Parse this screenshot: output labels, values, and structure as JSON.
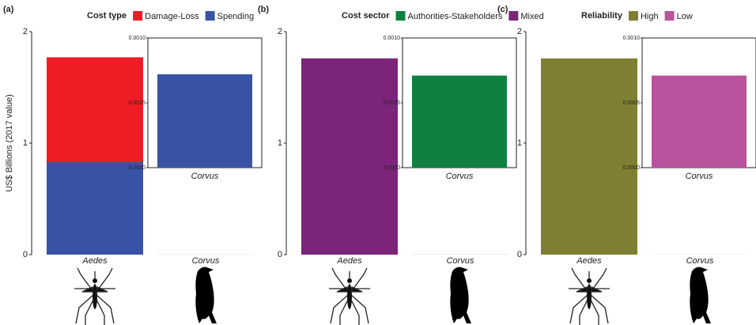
{
  "chart_data": [
    {
      "type": "bar",
      "stacked": true,
      "panel_label": "(a)",
      "legend_title": "Cost type",
      "ylabel": "US$ Billions (2017 value)",
      "categories": [
        "Aedes",
        "Corvus"
      ],
      "series": [
        {
          "name": "Damage-Loss",
          "color": "#ee1c25",
          "values": [
            0.94,
            null
          ]
        },
        {
          "name": "Spending",
          "color": "#3953a4",
          "values": [
            0.83,
            0.00072
          ]
        }
      ],
      "ylim": [
        0,
        2
      ],
      "yticks": [
        0,
        1,
        2
      ],
      "inset": {
        "ylim": [
          0,
          0.001
        ],
        "yticks": [
          {
            "value": 0,
            "label": "0.0000"
          },
          {
            "value": 0.0005,
            "label": "0.0005"
          },
          {
            "value": 0.001,
            "label": "0.0010"
          }
        ]
      }
    },
    {
      "type": "bar",
      "stacked": true,
      "panel_label": "(b)",
      "legend_title": "Cost sector",
      "categories": [
        "Aedes",
        "Corvus"
      ],
      "series": [
        {
          "name": "Authorities-Stakeholders",
          "color": "#0f8040",
          "values": [
            null,
            0.00071
          ]
        },
        {
          "name": "Mixed",
          "color": "#7b2479",
          "values": [
            1.76,
            null
          ]
        }
      ],
      "ylim": [
        0,
        2
      ],
      "yticks": [
        0,
        1,
        2
      ],
      "inset": {
        "ylim": [
          0,
          0.001
        ],
        "yticks": [
          {
            "value": 0,
            "label": "0.0000"
          },
          {
            "value": 0.0005,
            "label": "0.0005"
          },
          {
            "value": 0.001,
            "label": "0.0010"
          }
        ]
      }
    },
    {
      "type": "bar",
      "stacked": true,
      "panel_label": "(c)",
      "legend_title": "Reliability",
      "categories": [
        "Aedes",
        "Corvus"
      ],
      "series": [
        {
          "name": "High",
          "color": "#7f7f33",
          "values": [
            1.76,
            null
          ]
        },
        {
          "name": "Low",
          "color": "#b9529f",
          "values": [
            null,
            0.00071
          ]
        }
      ],
      "ylim": [
        0,
        2
      ],
      "yticks": [
        0,
        1,
        2
      ],
      "inset": {
        "ylim": [
          0,
          0.001
        ],
        "yticks": [
          {
            "value": 0,
            "label": "0.0000"
          },
          {
            "value": 0.0005,
            "label": "0.0005"
          },
          {
            "value": 0.001,
            "label": "0.0010"
          }
        ]
      }
    }
  ]
}
